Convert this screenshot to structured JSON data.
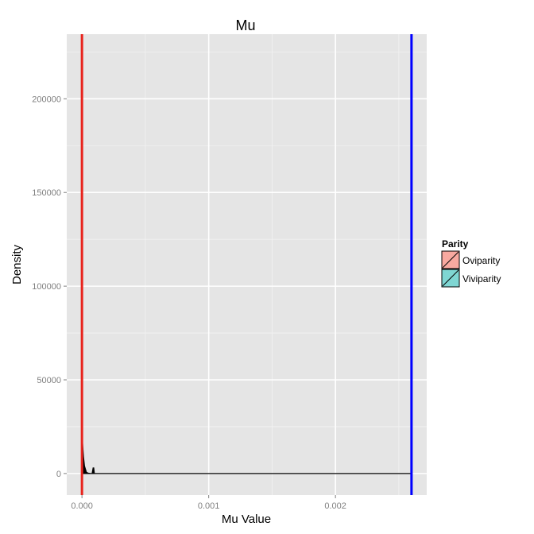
{
  "chart_data": {
    "type": "area",
    "title": "Mu",
    "xlabel": "Mu Value",
    "ylabel": "Density",
    "xlim": [
      -0.00012,
      0.00272
    ],
    "ylim": [
      -11500,
      234500
    ],
    "x_ticks": [
      0,
      0.001,
      0.002
    ],
    "x_tick_labels": [
      "0.000",
      "0.001",
      "0.002"
    ],
    "y_ticks": [
      0,
      50000,
      100000,
      150000,
      200000
    ],
    "y_tick_labels": [
      "0",
      "50000",
      "100000",
      "150000",
      "200000"
    ],
    "grid": true,
    "legend_position": "right",
    "legend": {
      "title": "Parity",
      "items": [
        {
          "label": "Oviparity",
          "color": "#F8A9A0"
        },
        {
          "label": "Viviparity",
          "color": "#7FD6D3"
        }
      ]
    },
    "density_color": "#000000",
    "density": {
      "x": [
        0.0,
        5e-06,
        1.2e-05,
        2e-05,
        3.5e-05,
        5e-05,
        7e-05,
        8e-05,
        8.8e-05,
        9.3e-05,
        9.8e-05,
        0.000105,
        0.00012,
        0.0026
      ],
      "y": [
        25000,
        16000,
        9000,
        4000,
        700,
        150,
        0,
        0,
        3000,
        3000,
        0,
        0,
        0,
        0
      ]
    },
    "vlines": [
      {
        "x": 0.0,
        "color": "#E8231C"
      },
      {
        "x": 0.0026,
        "color": "#0000FF"
      }
    ]
  }
}
